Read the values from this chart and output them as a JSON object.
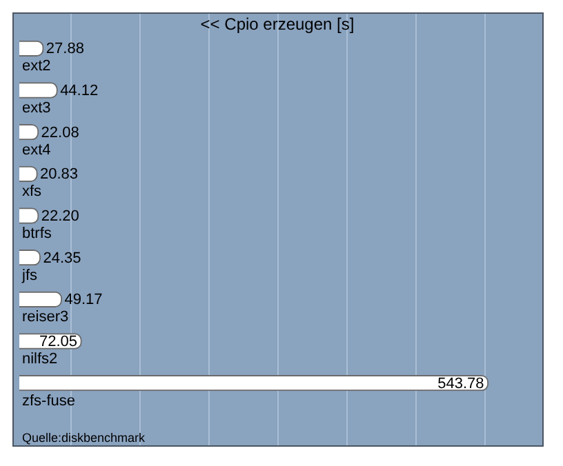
{
  "chart_data": {
    "type": "bar",
    "orientation": "horizontal",
    "title": "<< Cpio erzeugen [s]",
    "categories": [
      "ext2",
      "ext3",
      "ext4",
      "xfs",
      "btrfs",
      "jfs",
      "reiser3",
      "nilfs2",
      "zfs-fuse"
    ],
    "values": [
      27.88,
      44.12,
      22.08,
      20.83,
      22.2,
      24.35,
      49.17,
      72.05,
      543.78
    ],
    "color": "#ffffff",
    "xlim": [
      0,
      605
    ],
    "xticks": [
      {
        "value": 60,
        "label": null
      },
      {
        "value": 140,
        "label": null
      },
      {
        "value": 220,
        "label": null
      },
      {
        "value": 300,
        "label": null
      },
      {
        "value": 380,
        "label": null
      },
      {
        "value": 460,
        "label": null
      },
      {
        "value": 540,
        "label": null
      }
    ],
    "value_labels": [
      "27.88",
      "44.12",
      "22.08",
      "20.83",
      "22.20",
      "24.35",
      "49.17",
      "72.05",
      "543.78"
    ],
    "grid": "x",
    "tick_labels": "y",
    "annotations": [
      "Quelle:diskbenchmark"
    ]
  }
}
